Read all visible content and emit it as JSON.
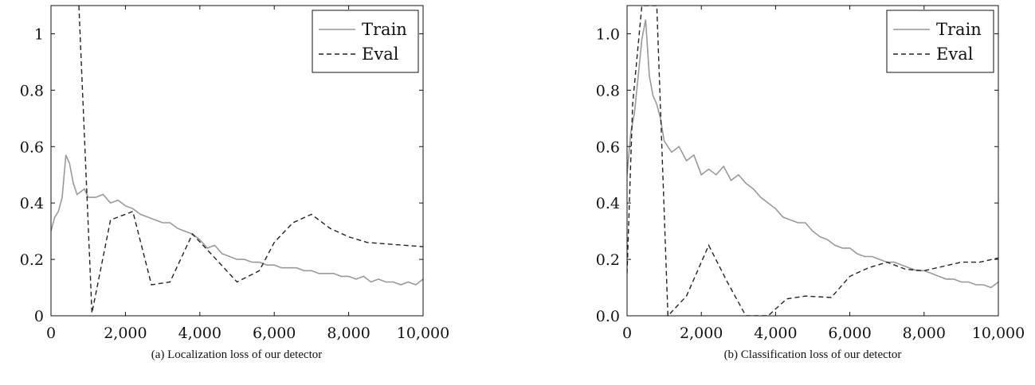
{
  "chart_data": [
    {
      "type": "line",
      "caption": "(a) Localization loss of our detector",
      "xlim": [
        0,
        10000
      ],
      "ylim": [
        0,
        1.1
      ],
      "xticks": [
        0,
        2000,
        4000,
        6000,
        8000,
        10000
      ],
      "xtick_labels": [
        "0",
        "2,000",
        "4,000",
        "6,000",
        "8,000",
        "10,000"
      ],
      "yticks": [
        0,
        0.2,
        0.4,
        0.6,
        0.8,
        1
      ],
      "ytick_labels": [
        "0",
        "0.2",
        "0.4",
        "0.6",
        "0.8",
        "1"
      ],
      "legend_position": "top-right",
      "grid": false,
      "series": [
        {
          "name": "Train",
          "color": "#999999",
          "style": "solid",
          "x": [
            0,
            100,
            200,
            300,
            400,
            500,
            600,
            700,
            800,
            900,
            1000,
            1200,
            1400,
            1600,
            1800,
            2000,
            2200,
            2400,
            2600,
            2800,
            3000,
            3200,
            3400,
            3600,
            3800,
            4000,
            4200,
            4400,
            4600,
            4800,
            5000,
            5200,
            5400,
            5600,
            5800,
            6000,
            6200,
            6400,
            6600,
            6800,
            7000,
            7200,
            7400,
            7600,
            7800,
            8000,
            8200,
            8400,
            8600,
            8800,
            9000,
            9200,
            9400,
            9600,
            9800,
            10000
          ],
          "y": [
            0.3,
            0.35,
            0.37,
            0.42,
            0.57,
            0.54,
            0.47,
            0.43,
            0.44,
            0.45,
            0.42,
            0.42,
            0.43,
            0.4,
            0.41,
            0.39,
            0.38,
            0.36,
            0.35,
            0.34,
            0.33,
            0.33,
            0.31,
            0.3,
            0.29,
            0.27,
            0.24,
            0.25,
            0.22,
            0.21,
            0.2,
            0.2,
            0.19,
            0.19,
            0.18,
            0.18,
            0.17,
            0.17,
            0.17,
            0.16,
            0.16,
            0.15,
            0.15,
            0.15,
            0.14,
            0.14,
            0.13,
            0.14,
            0.12,
            0.13,
            0.12,
            0.12,
            0.11,
            0.12,
            0.11,
            0.13
          ]
        },
        {
          "name": "Eval",
          "color": "#222222",
          "style": "dashed",
          "x": [
            750,
            1100,
            1600,
            2200,
            2700,
            3200,
            3800,
            4300,
            5000,
            5600,
            6000,
            6500,
            7000,
            7500,
            8000,
            8500,
            9000,
            10000
          ],
          "y": [
            1.1,
            0.01,
            0.34,
            0.37,
            0.11,
            0.12,
            0.29,
            0.22,
            0.12,
            0.16,
            0.26,
            0.33,
            0.36,
            0.31,
            0.28,
            0.26,
            0.255,
            0.245
          ]
        }
      ]
    },
    {
      "type": "line",
      "caption": "(b) Classification loss of our detector",
      "xlim": [
        0,
        10000
      ],
      "ylim": [
        0,
        1.1
      ],
      "xticks": [
        0,
        2000,
        4000,
        6000,
        8000,
        10000
      ],
      "xtick_labels": [
        "0",
        "2,000",
        "4,000",
        "6,000",
        "8,000",
        "10,000"
      ],
      "yticks": [
        0,
        0.2,
        0.4,
        0.6,
        0.8,
        1.0
      ],
      "ytick_labels": [
        "0.0",
        "0.2",
        "0.4",
        "0.6",
        "0.8",
        "1.0"
      ],
      "legend_position": "top-right",
      "grid": false,
      "series": [
        {
          "name": "Train",
          "color": "#999999",
          "style": "solid",
          "x": [
            0,
            100,
            200,
            300,
            400,
            500,
            600,
            700,
            800,
            900,
            1000,
            1200,
            1400,
            1600,
            1800,
            2000,
            2200,
            2400,
            2600,
            2800,
            3000,
            3200,
            3400,
            3600,
            3800,
            4000,
            4200,
            4400,
            4600,
            4800,
            5000,
            5200,
            5400,
            5600,
            5800,
            6000,
            6200,
            6400,
            6600,
            6800,
            7000,
            7200,
            7400,
            7600,
            7800,
            8000,
            8200,
            8400,
            8600,
            8800,
            9000,
            9200,
            9400,
            9600,
            9800,
            10000
          ],
          "y": [
            0.5,
            0.65,
            0.72,
            0.85,
            0.98,
            1.05,
            0.85,
            0.78,
            0.75,
            0.7,
            0.62,
            0.58,
            0.6,
            0.55,
            0.57,
            0.5,
            0.52,
            0.5,
            0.53,
            0.48,
            0.5,
            0.47,
            0.45,
            0.42,
            0.4,
            0.38,
            0.35,
            0.34,
            0.33,
            0.33,
            0.3,
            0.28,
            0.27,
            0.25,
            0.24,
            0.24,
            0.22,
            0.21,
            0.21,
            0.2,
            0.19,
            0.19,
            0.18,
            0.17,
            0.16,
            0.16,
            0.15,
            0.14,
            0.13,
            0.13,
            0.12,
            0.12,
            0.11,
            0.11,
            0.1,
            0.12
          ]
        },
        {
          "name": "Eval",
          "color": "#222222",
          "style": "dashed",
          "x": [
            0,
            150,
            400,
            600,
            800,
            1100,
            1600,
            2200,
            2700,
            3200,
            3800,
            4300,
            4800,
            5500,
            6000,
            6500,
            7000,
            7500,
            8000,
            8500,
            9000,
            9500,
            10000
          ],
          "y": [
            0.15,
            0.75,
            1.1,
            1.1,
            1.1,
            0.0,
            0.07,
            0.25,
            0.12,
            0.0,
            0.0,
            0.06,
            0.07,
            0.065,
            0.14,
            0.17,
            0.19,
            0.165,
            0.16,
            0.175,
            0.19,
            0.19,
            0.205
          ]
        }
      ]
    }
  ]
}
